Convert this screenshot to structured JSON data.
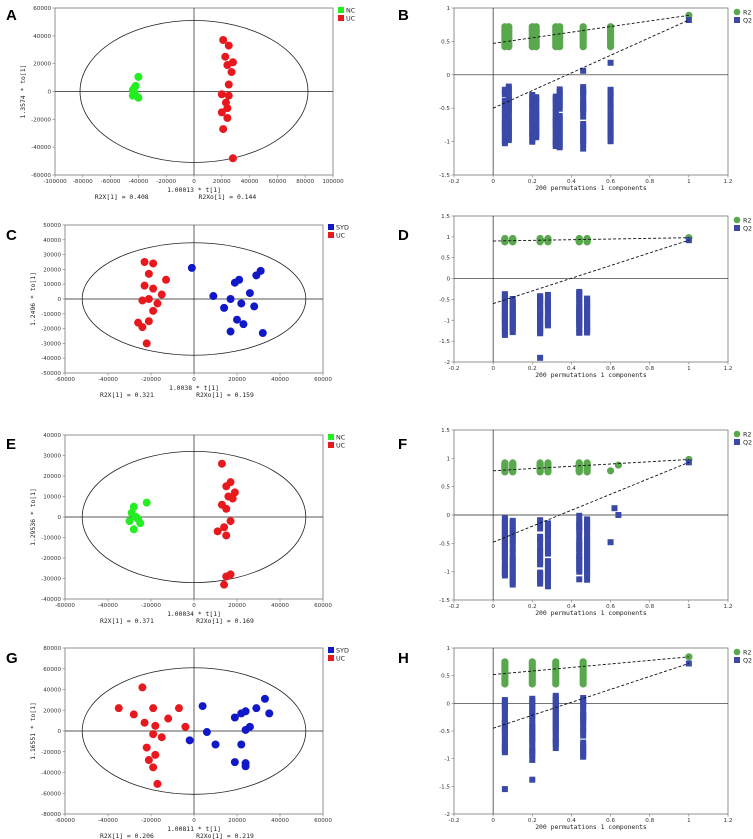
{
  "colors": {
    "nc": "#22ee22",
    "uc": "#e8191e",
    "syd": "#1018c8",
    "r2": "#5aa84e",
    "q2": "#3a48a8"
  },
  "chart_data": [
    {
      "id": "A",
      "type": "scatter",
      "panel_label": "A",
      "xlabel_main": "1.00013 * t[1]",
      "xlabel_left": "R2X[1] = 0.408",
      "xlabel_right": "R2Xo[1] = 0.144",
      "ylabel": "1.3574 * to[1]",
      "xlim": [
        -100000,
        100000
      ],
      "ylim": [
        -60000,
        60000
      ],
      "xticks": [
        -100000,
        -80000,
        -60000,
        -40000,
        -20000,
        0,
        20000,
        40000,
        60000,
        80000,
        100000
      ],
      "yticks": [
        -60000,
        -40000,
        -20000,
        0,
        20000,
        40000,
        60000
      ],
      "ellipse": {
        "rx": 82000,
        "ry": 51000
      },
      "series": [
        {
          "name": "NC",
          "color_key": "nc",
          "points": [
            [
              -40000,
              10500
            ],
            [
              -42000,
              4000
            ],
            [
              -43000,
              2500
            ],
            [
              -44000,
              1000
            ],
            [
              -43500,
              -500
            ],
            [
              -42500,
              -1500
            ],
            [
              -44000,
              -3000
            ],
            [
              -40000,
              -4500
            ]
          ]
        },
        {
          "name": "UC",
          "color_key": "uc",
          "points": [
            [
              21000,
              37000
            ],
            [
              25000,
              33000
            ],
            [
              22500,
              25000
            ],
            [
              28000,
              21000
            ],
            [
              24000,
              19000
            ],
            [
              27000,
              14000
            ],
            [
              25000,
              5000
            ],
            [
              20000,
              -2000
            ],
            [
              25000,
              -3000
            ],
            [
              23000,
              -8000
            ],
            [
              24000,
              -12000
            ],
            [
              20000,
              -15000
            ],
            [
              24000,
              -19000
            ],
            [
              21000,
              -27000
            ],
            [
              28000,
              -48000
            ]
          ]
        }
      ]
    },
    {
      "id": "B",
      "type": "scatter",
      "panel_label": "B",
      "xlabel_main": "200 permutations 1 components",
      "ylabel": "",
      "xlim": [
        -0.2,
        1.2
      ],
      "ylim": [
        -1.5,
        1
      ],
      "xticks": [
        -0.2,
        0,
        0.2,
        0.4,
        0.6,
        0.8,
        1,
        1.2
      ],
      "xtick_labels": [
        "-0.2",
        "0",
        "0.2",
        "0.4",
        "0.6",
        "0.8",
        "1",
        "1.2"
      ],
      "yticks": [
        -1.5,
        -1,
        -0.5,
        0,
        0.5,
        1
      ],
      "ytick_labels": [
        "-1.5",
        "-1",
        "-0.5",
        "0",
        "0.5",
        "1"
      ],
      "legend": [
        "R2",
        "Q2"
      ],
      "perm": {
        "cols": [
          0.06,
          0.08,
          0.2,
          0.22,
          0.32,
          0.34,
          0.46,
          0.6
        ],
        "r2": [
          0.42,
          0.72
        ],
        "q2": [
          -1.14,
          -0.15
        ],
        "q2_extra": [
          [
            0.46,
            0.06
          ],
          [
            0.46,
            -0.27
          ],
          [
            0.46,
            -0.52
          ],
          [
            0.6,
            0.18
          ]
        ],
        "r2_extra": [
          [
            0.46,
            0.6
          ],
          [
            0.6,
            0.58
          ]
        ],
        "r2_end": 0.89,
        "q2_end": 0.82,
        "r2_int": 0.47,
        "q2_int": -0.5
      }
    },
    {
      "id": "C",
      "type": "scatter",
      "panel_label": "C",
      "xlabel_main": "1.0038 * t[1]",
      "xlabel_left": "R2X[1] = 0.321",
      "xlabel_right": "R2Xo[1] = 0.159",
      "ylabel": "1.2496 * to[1]",
      "xlim": [
        -60000,
        60000
      ],
      "ylim": [
        -50000,
        50000
      ],
      "xticks": [
        -60000,
        -40000,
        -20000,
        0,
        20000,
        40000,
        60000
      ],
      "yticks": [
        -50000,
        -40000,
        -30000,
        -20000,
        -10000,
        0,
        10000,
        20000,
        30000,
        40000,
        50000
      ],
      "ellipse": {
        "rx": 52000,
        "ry": 38000
      },
      "series": [
        {
          "name": "SYD",
          "color_key": "syd",
          "points": [
            [
              -1000,
              21000
            ],
            [
              31000,
              19000
            ],
            [
              29000,
              16000
            ],
            [
              21000,
              13000
            ],
            [
              19000,
              11000
            ],
            [
              9000,
              2000
            ],
            [
              26000,
              4000
            ],
            [
              17000,
              0
            ],
            [
              22000,
              -3000
            ],
            [
              14000,
              -6000
            ],
            [
              28000,
              -5000
            ],
            [
              20000,
              -14000
            ],
            [
              23000,
              -17000
            ],
            [
              17000,
              -22000
            ],
            [
              32000,
              -23000
            ]
          ]
        },
        {
          "name": "UC",
          "color_key": "uc",
          "points": [
            [
              -23000,
              25000
            ],
            [
              -19000,
              24000
            ],
            [
              -21000,
              17000
            ],
            [
              -13000,
              13000
            ],
            [
              -23000,
              9000
            ],
            [
              -19000,
              7000
            ],
            [
              -15000,
              3000
            ],
            [
              -21000,
              0
            ],
            [
              -24000,
              -1000
            ],
            [
              -17000,
              -3000
            ],
            [
              -19000,
              -8000
            ],
            [
              -21000,
              -15000
            ],
            [
              -26000,
              -16000
            ],
            [
              -24000,
              -19000
            ],
            [
              -22000,
              -30000
            ]
          ]
        }
      ]
    },
    {
      "id": "D",
      "type": "scatter",
      "panel_label": "D",
      "xlabel_main": "200 permutations 1 components",
      "ylabel": "",
      "xlim": [
        -0.2,
        1.2
      ],
      "ylim": [
        -2,
        1.5
      ],
      "xticks": [
        -0.2,
        0,
        0.2,
        0.4,
        0.6,
        0.8,
        1,
        1.2
      ],
      "xtick_labels": [
        "-0.2",
        "0",
        "0.2",
        "0.4",
        "0.6",
        "0.8",
        "1",
        "1.2"
      ],
      "yticks": [
        -2,
        -1.5,
        -1,
        -0.5,
        0,
        0.5,
        1,
        1.5
      ],
      "ytick_labels": [
        "-2",
        "-1.5",
        "-1",
        "-0.5",
        "0",
        "0.5",
        "1",
        "1.5"
      ],
      "legend": [
        "R2",
        "Q2"
      ],
      "perm": {
        "cols": [
          0.06,
          0.1,
          0.24,
          0.28,
          0.44,
          0.48
        ],
        "r2": [
          0.88,
          0.96
        ],
        "q2": [
          -1.4,
          -0.3
        ],
        "q2_extra": [
          [
            0.24,
            -1.9
          ],
          [
            0.44,
            -1.3
          ]
        ],
        "r2_extra": [],
        "r2_end": 0.98,
        "q2_end": 0.92,
        "r2_int": 0.9,
        "q2_int": -0.6
      }
    },
    {
      "id": "E",
      "type": "scatter",
      "panel_label": "E",
      "xlabel_main": "1.00034 * t[1]",
      "xlabel_left": "R2X[1] = 0.371",
      "xlabel_right": "R2Xo[1] = 0.169",
      "ylabel": "1.29536 * to[1]",
      "xlim": [
        -60000,
        60000
      ],
      "ylim": [
        -40000,
        40000
      ],
      "xticks": [
        -60000,
        -40000,
        -20000,
        0,
        20000,
        40000,
        60000
      ],
      "yticks": [
        -40000,
        -30000,
        -20000,
        -10000,
        0,
        10000,
        20000,
        30000,
        40000
      ],
      "ellipse": {
        "rx": 52000,
        "ry": 32000
      },
      "series": [
        {
          "name": "NC",
          "color_key": "nc",
          "points": [
            [
              -28000,
              5000
            ],
            [
              -22000,
              7000
            ],
            [
              -29000,
              2000
            ],
            [
              -27000,
              0
            ],
            [
              -26000,
              -1000
            ],
            [
              -30000,
              -2000
            ],
            [
              -25000,
              -3000
            ],
            [
              -28000,
              -6000
            ]
          ]
        },
        {
          "name": "UC",
          "color_key": "uc",
          "points": [
            [
              13000,
              26000
            ],
            [
              17000,
              17000
            ],
            [
              15000,
              15000
            ],
            [
              19000,
              12000
            ],
            [
              16000,
              10000
            ],
            [
              18000,
              9000
            ],
            [
              13000,
              6000
            ],
            [
              15000,
              4000
            ],
            [
              17000,
              -2000
            ],
            [
              14000,
              -5000
            ],
            [
              11000,
              -7000
            ],
            [
              15000,
              -9000
            ],
            [
              17000,
              -28000
            ],
            [
              15000,
              -29000
            ],
            [
              14000,
              -33000
            ]
          ]
        }
      ]
    },
    {
      "id": "F",
      "type": "scatter",
      "panel_label": "F",
      "xlabel_main": "200 permutations 1 components",
      "ylabel": "",
      "xlim": [
        -0.2,
        1.2
      ],
      "ylim": [
        -1.5,
        1.5
      ],
      "xticks": [
        -0.2,
        0,
        0.2,
        0.4,
        0.6,
        0.8,
        1,
        1.2
      ],
      "xtick_labels": [
        "-0.2",
        "0",
        "0.2",
        "0.4",
        "0.6",
        "0.8",
        "1",
        "1.2"
      ],
      "yticks": [
        -1.5,
        -1,
        -0.5,
        0,
        0.5,
        1,
        1.5
      ],
      "ytick_labels": [
        "-1.5",
        "-1",
        "-0.5",
        "0",
        "0.5",
        "1",
        "1.5"
      ],
      "legend": [
        "R2",
        "Q2"
      ],
      "perm": {
        "cols": [
          0.06,
          0.1,
          0.24,
          0.28,
          0.44,
          0.48
        ],
        "r2": [
          0.76,
          0.92
        ],
        "q2": [
          -1.3,
          0.05
        ],
        "q2_extra": [
          [
            0.62,
            0.12
          ],
          [
            0.64,
            0.0
          ],
          [
            0.6,
            -0.48
          ],
          [
            0.44,
            -0.72
          ],
          [
            0.48,
            -0.55
          ],
          [
            0.24,
            -1.05
          ]
        ],
        "r2_extra": [
          [
            0.6,
            0.78
          ],
          [
            0.64,
            0.88
          ]
        ],
        "r2_end": 0.98,
        "q2_end": 0.93,
        "r2_int": 0.78,
        "q2_int": -0.48
      }
    },
    {
      "id": "G",
      "type": "scatter",
      "panel_label": "G",
      "xlabel_main": "1.00811 * t[1]",
      "xlabel_left": "R2X[1] = 0.206",
      "xlabel_right": "R2Xo[1] = 0.219",
      "ylabel": "1.16551 * to[1]",
      "xlim": [
        -60000,
        60000
      ],
      "ylim": [
        -80000,
        80000
      ],
      "xticks": [
        -60000,
        -40000,
        -20000,
        0,
        20000,
        40000,
        60000
      ],
      "yticks": [
        -80000,
        -60000,
        -40000,
        -20000,
        0,
        20000,
        40000,
        60000,
        80000
      ],
      "ellipse": {
        "rx": 52000,
        "ry": 61000
      },
      "series": [
        {
          "name": "SYD",
          "color_key": "syd",
          "points": [
            [
              4000,
              24000
            ],
            [
              33000,
              31000
            ],
            [
              29000,
              22000
            ],
            [
              24000,
              19000
            ],
            [
              22000,
              17000
            ],
            [
              35000,
              17000
            ],
            [
              19000,
              13000
            ],
            [
              26000,
              4000
            ],
            [
              24000,
              1000
            ],
            [
              6000,
              -1000
            ],
            [
              -2000,
              -9000
            ],
            [
              10000,
              -13000
            ],
            [
              22000,
              -13000
            ],
            [
              19000,
              -30000
            ],
            [
              24000,
              -31000
            ],
            [
              24000,
              -34000
            ]
          ]
        },
        {
          "name": "UC",
          "color_key": "uc",
          "points": [
            [
              -24000,
              42000
            ],
            [
              -35000,
              22000
            ],
            [
              -19000,
              22000
            ],
            [
              -7000,
              22000
            ],
            [
              -28000,
              16000
            ],
            [
              -12000,
              12000
            ],
            [
              -23000,
              8000
            ],
            [
              -18000,
              5000
            ],
            [
              -4000,
              4000
            ],
            [
              -19000,
              -3000
            ],
            [
              -15000,
              -6000
            ],
            [
              -22000,
              -16000
            ],
            [
              -18000,
              -23000
            ],
            [
              -21000,
              -28000
            ],
            [
              -19000,
              -35000
            ],
            [
              -17000,
              -51000
            ]
          ]
        }
      ]
    },
    {
      "id": "H",
      "type": "scatter",
      "panel_label": "H",
      "xlabel_main": "200 permutations 1 components",
      "ylabel": "",
      "xlim": [
        -0.2,
        1.2
      ],
      "ylim": [
        -2,
        1
      ],
      "xticks": [
        -0.2,
        0,
        0.2,
        0.4,
        0.6,
        0.8,
        1,
        1.2
      ],
      "xtick_labels": [
        "-0.2",
        "0",
        "0.2",
        "0.4",
        "0.6",
        "0.8",
        "1",
        "1.2"
      ],
      "yticks": [
        -2,
        -1.5,
        -1,
        -0.5,
        0,
        0.5,
        1
      ],
      "ytick_labels": [
        "-2",
        "-1.5",
        "-1",
        "-0.5",
        "0",
        "0.5",
        "1"
      ],
      "legend": [
        "R2",
        "Q2"
      ],
      "perm": {
        "cols": [
          0.06,
          0.2,
          0.32,
          0.46
        ],
        "r2": [
          0.35,
          0.75
        ],
        "q2": [
          -1.05,
          0.2
        ],
        "q2_extra": [
          [
            0.06,
            -1.55
          ],
          [
            0.2,
            -1.38
          ],
          [
            0.46,
            -0.2
          ]
        ],
        "r2_extra": [],
        "r2_end": 0.84,
        "q2_end": 0.72,
        "r2_int": 0.52,
        "q2_int": -0.45
      }
    }
  ]
}
